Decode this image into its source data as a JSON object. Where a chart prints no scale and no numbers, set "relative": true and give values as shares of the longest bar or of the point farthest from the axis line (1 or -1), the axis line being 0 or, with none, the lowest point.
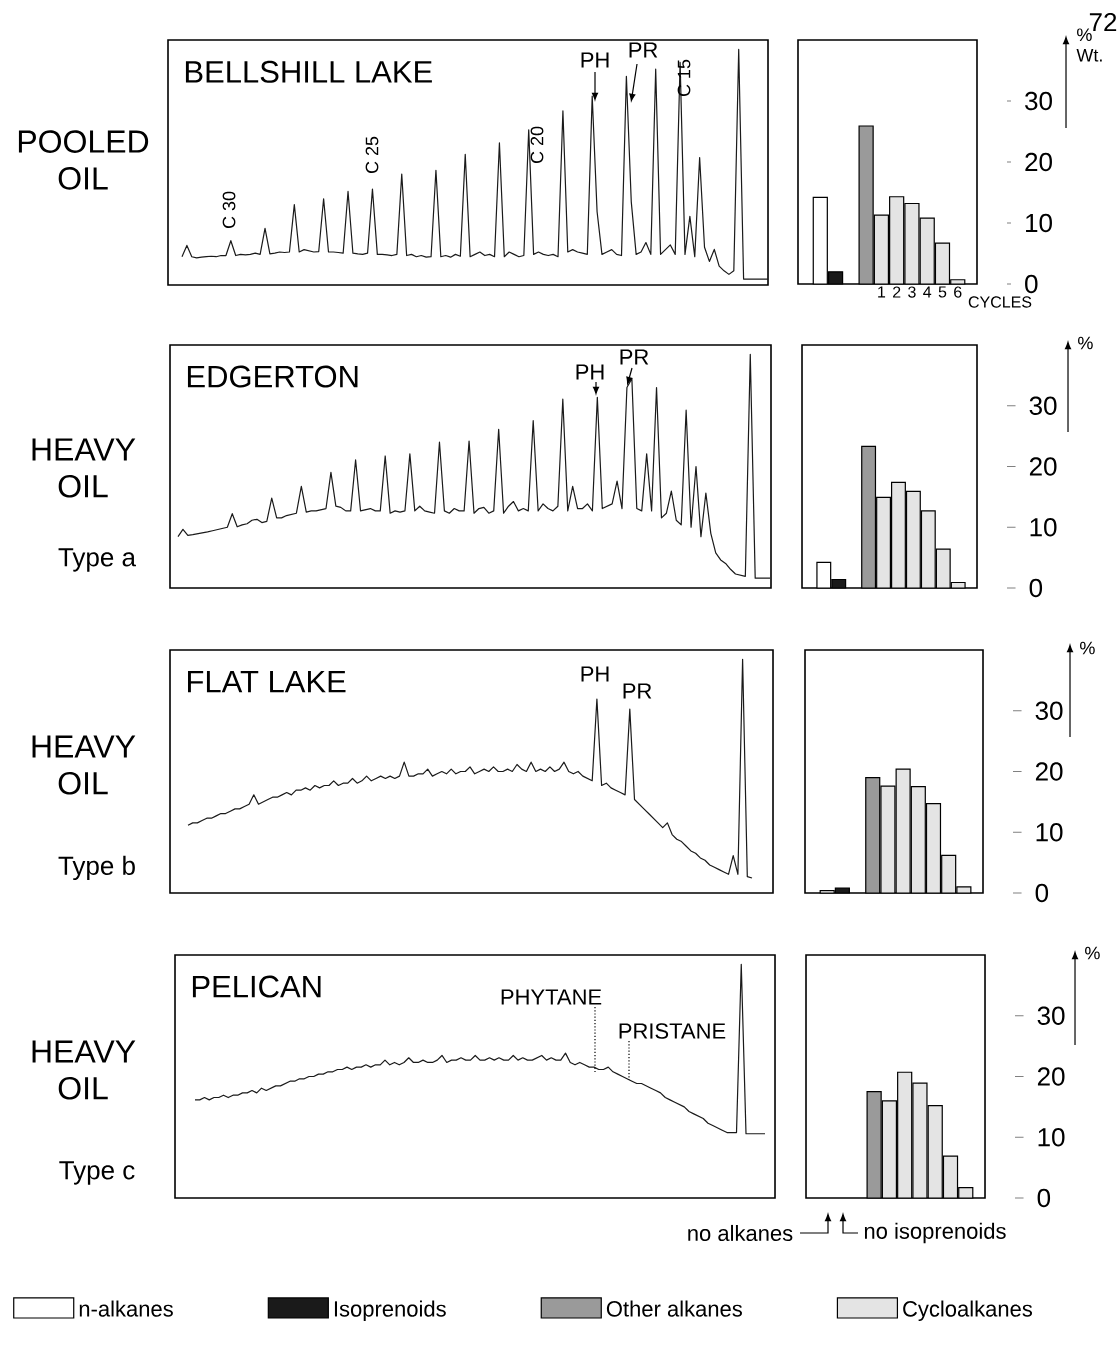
{
  "chart_data": [
    {
      "type": "line",
      "relative": true,
      "title": "BELLSHILL LAKE",
      "ylabel": "POOLED OIL",
      "annotations": [
        "C 30",
        "C 25",
        "C 20",
        "C 15",
        "PH",
        "PR"
      ],
      "categories": [
        null,
        null,
        null,
        null,
        null,
        null,
        null,
        null,
        null,
        null,
        null,
        null,
        null,
        null,
        null,
        null,
        null,
        null,
        null,
        null,
        null,
        null,
        null,
        null,
        null,
        null,
        null,
        null,
        null,
        null,
        null,
        null,
        null,
        null,
        null,
        null,
        null,
        null,
        null,
        null,
        null,
        null,
        null,
        null,
        null,
        null,
        null,
        null,
        null,
        null,
        null,
        null,
        null,
        null,
        null,
        null,
        null,
        null,
        null,
        null,
        null,
        null,
        null,
        null,
        null,
        null,
        null,
        null,
        null,
        null,
        null,
        null,
        null,
        null,
        null,
        null,
        null,
        null,
        null,
        null,
        null,
        null,
        null,
        null,
        null,
        null,
        null,
        null,
        null,
        null,
        null,
        null,
        null,
        null,
        null,
        null,
        null,
        null,
        null,
        null,
        null,
        null,
        null,
        null,
        null,
        null,
        null,
        null,
        null,
        null,
        null,
        null,
        null,
        null,
        null,
        null,
        null,
        null,
        null,
        null,
        null
      ],
      "series": [
        {
          "color": "#1a1a1a",
          "values": [
            0.12,
            0.168,
            0.12,
            0.115,
            0.118,
            0.12,
            0.122,
            0.12,
            0.125,
            0.125,
            0.188,
            0.125,
            0.13,
            0.128,
            0.13,
            0.135,
            0.13,
            0.24,
            0.132,
            0.135,
            0.14,
            0.138,
            0.14,
            0.341,
            0.14,
            0.15,
            0.145,
            0.14,
            0.142,
            0.366,
            0.14,
            0.14,
            0.138,
            0.135,
            0.397,
            0.135,
            0.132,
            0.13,
            0.135,
            0.407,
            0.13,
            0.13,
            0.128,
            0.125,
            0.13,
            0.471,
            0.125,
            0.13,
            0.12,
            0.125,
            0.118,
            0.12,
            0.487,
            0.12,
            0.125,
            0.118,
            0.13,
            0.122,
            0.555,
            0.12,
            0.13,
            0.14,
            0.125,
            0.13,
            0.12,
            0.603,
            0.12,
            0.14,
            0.13,
            0.12,
            0.125,
            0.659,
            0.13,
            0.14,
            0.13,
            0.125,
            0.13,
            0.12,
            0.739,
            0.14,
            0.15,
            0.14,
            0.135,
            0.13,
            0.802,
            0.311,
            0.13,
            0.14,
            0.15,
            0.13,
            0.125,
            0.886,
            0.353,
            0.13,
            0.14,
            0.18,
            0.13,
            0.916,
            0.13,
            0.15,
            0.17,
            0.13,
            0.945,
            0.13,
            0.291,
            0.12,
            0.541,
            0.16,
            0.1,
            0.151,
            0.08,
            0.06,
            0.045,
            0.06,
            1,
            0.025,
            0.025,
            0.025,
            0.025,
            0.025,
            0.025
          ]
        }
      ]
    },
    {
      "type": "bar",
      "ylabel": "% Wt.",
      "xlabel": "CYCLES",
      "ylim": [
        0,
        40
      ],
      "yticks": [
        0,
        10,
        20,
        30
      ],
      "legend": "bottom",
      "annotations": [
        "72"
      ],
      "categories": [
        null,
        null,
        null,
        null,
        "1",
        "2",
        "3",
        "4",
        "5",
        "6"
      ],
      "series": [
        {
          "name": "n-alkanes",
          "color": "#ffffff",
          "values": [
            14.2,
            null,
            null,
            null,
            null,
            null,
            null,
            null,
            null,
            null
          ]
        },
        {
          "name": "Isoprenoids",
          "color": "#1a1a1a",
          "values": [
            null,
            2.0,
            null,
            null,
            null,
            null,
            null,
            null,
            null,
            null
          ]
        },
        {
          "name": "Other alkanes",
          "color": "#9a9a9a",
          "values": [
            null,
            null,
            null,
            25.9,
            null,
            null,
            null,
            null,
            null,
            null
          ]
        },
        {
          "name": "Cycloalkanes",
          "color": "#e4e4e4",
          "values": [
            null,
            null,
            null,
            null,
            11.3,
            14.3,
            13.2,
            10.8,
            6.7,
            0.7
          ]
        }
      ]
    },
    {
      "type": "line",
      "relative": true,
      "title": "EDGERTON",
      "ylabel": "HEAVY OIL",
      "annotations": [
        "PH",
        "PR",
        "Type a"
      ],
      "categories": [
        null,
        null,
        null,
        null,
        null,
        null,
        null,
        null,
        null,
        null,
        null,
        null,
        null,
        null,
        null,
        null,
        null,
        null,
        null,
        null,
        null,
        null,
        null,
        null,
        null,
        null,
        null,
        null,
        null,
        null,
        null,
        null,
        null,
        null,
        null,
        null,
        null,
        null,
        null,
        null,
        null,
        null,
        null,
        null,
        null,
        null,
        null,
        null,
        null,
        null,
        null,
        null,
        null,
        null,
        null,
        null,
        null,
        null,
        null,
        null,
        null,
        null,
        null,
        null,
        null,
        null,
        null,
        null,
        null,
        null,
        null,
        null,
        null,
        null,
        null,
        null,
        null,
        null,
        null,
        null,
        null,
        null,
        null,
        null,
        null,
        null,
        null,
        null,
        null,
        null,
        null,
        null,
        null,
        null,
        null,
        null,
        null,
        null,
        null,
        null,
        null,
        null,
        null,
        null,
        null,
        null,
        null,
        null,
        null,
        null,
        null,
        null,
        null,
        null,
        null,
        null,
        null,
        null,
        null,
        null,
        null
      ],
      "series": [
        {
          "color": "#1a1a1a",
          "values": [
            0.22,
            0.251,
            0.225,
            0.228,
            0.232,
            0.236,
            0.24,
            0.245,
            0.25,
            0.255,
            0.26,
            0.318,
            0.262,
            0.27,
            0.275,
            0.29,
            0.294,
            0.28,
            0.285,
            0.385,
            0.3,
            0.3,
            0.31,
            0.315,
            0.32,
            0.435,
            0.325,
            0.33,
            0.33,
            0.335,
            0.34,
            0.495,
            0.35,
            0.345,
            0.33,
            0.33,
            0.548,
            0.33,
            0.335,
            0.34,
            0.33,
            0.33,
            0.565,
            0.32,
            0.33,
            0.325,
            0.33,
            0.574,
            0.33,
            0.35,
            0.33,
            0.325,
            0.32,
            0.624,
            0.33,
            0.32,
            0.34,
            0.33,
            0.33,
            0.629,
            0.32,
            0.34,
            0.345,
            0.32,
            0.33,
            0.679,
            0.32,
            0.35,
            0.37,
            0.33,
            0.34,
            0.33,
            0.716,
            0.33,
            0.36,
            0.34,
            0.33,
            0.35,
            0.808,
            0.33,
            0.435,
            0.34,
            0.34,
            0.36,
            0.33,
            0.816,
            0.34,
            0.35,
            0.36,
            0.457,
            0.34,
            0.858,
            0.896,
            0.34,
            0.33,
            0.574,
            0.33,
            0.858,
            0.3,
            0.32,
            0.415,
            0.29,
            0.27,
            0.761,
            0.26,
            0.52,
            0.22,
            0.406,
            0.234,
            0.15,
            0.12,
            0.105,
            0.08,
            0.06,
            0.055,
            0.05,
            1,
            0.042,
            0.042,
            0.042,
            0.042
          ]
        }
      ]
    },
    {
      "type": "bar",
      "ylabel": "%",
      "ylim": [
        0,
        40
      ],
      "yticks": [
        0,
        10,
        20,
        30
      ],
      "tick_labels": "y",
      "categories": [
        null,
        null,
        null,
        null,
        "1",
        "2",
        "3",
        "4",
        "5",
        "6"
      ],
      "series": [
        {
          "color": "#ffffff",
          "values": [
            4.2,
            null,
            null,
            null,
            null,
            null,
            null,
            null,
            null,
            null
          ]
        },
        {
          "color": "#1a1a1a",
          "values": [
            null,
            1.4,
            null,
            null,
            null,
            null,
            null,
            null,
            null,
            null
          ]
        },
        {
          "color": "#9a9a9a",
          "values": [
            null,
            null,
            null,
            23.3,
            null,
            null,
            null,
            null,
            null,
            null
          ]
        },
        {
          "color": "#e4e4e4",
          "values": [
            null,
            null,
            null,
            null,
            14.9,
            17.4,
            15.9,
            12.7,
            6.4,
            0.9
          ]
        }
      ]
    },
    {
      "type": "line",
      "relative": true,
      "title": "FLAT LAKE",
      "ylabel": "HEAVY OIL",
      "annotations": [
        "PH",
        "PR",
        "Type b"
      ],
      "categories": [
        null,
        null,
        null,
        null,
        null,
        null,
        null,
        null,
        null,
        null,
        null,
        null,
        null,
        null,
        null,
        null,
        null,
        null,
        null,
        null,
        null,
        null,
        null,
        null,
        null,
        null,
        null,
        null,
        null,
        null,
        null,
        null,
        null,
        null,
        null,
        null,
        null,
        null,
        null,
        null,
        null,
        null,
        null,
        null,
        null,
        null,
        null,
        null,
        null,
        null,
        null,
        null,
        null,
        null,
        null,
        null,
        null,
        null,
        null,
        null,
        null,
        null,
        null,
        null,
        null,
        null,
        null,
        null,
        null,
        null,
        null,
        null,
        null,
        null,
        null,
        null,
        null,
        null,
        null,
        null,
        null,
        null,
        null,
        null,
        null,
        null,
        null,
        null,
        null,
        null,
        null,
        null,
        null,
        null,
        null,
        null,
        null,
        null,
        null,
        null,
        null,
        null,
        null,
        null,
        null,
        null,
        null,
        null,
        null,
        null,
        null,
        null,
        null,
        null,
        null,
        null,
        null,
        null,
        null,
        null,
        null
      ],
      "series": [
        {
          "color": "#1a1a1a",
          "values": [
            0.29,
            0.3,
            0.3,
            0.31,
            0.32,
            0.32,
            0.33,
            0.34,
            0.34,
            0.35,
            0.36,
            0.36,
            0.37,
            0.38,
            0.42,
            0.38,
            0.39,
            0.4,
            0.41,
            0.41,
            0.42,
            0.43,
            0.42,
            0.44,
            0.44,
            0.45,
            0.44,
            0.46,
            0.45,
            0.46,
            0.46,
            0.48,
            0.46,
            0.47,
            0.47,
            0.49,
            0.47,
            0.48,
            0.5,
            0.48,
            0.49,
            0.5,
            0.49,
            0.5,
            0.49,
            0.5,
            0.56,
            0.5,
            0.5,
            0.51,
            0.51,
            0.53,
            0.5,
            0.51,
            0.52,
            0.51,
            0.53,
            0.51,
            0.52,
            0.52,
            0.54,
            0.51,
            0.52,
            0.53,
            0.52,
            0.54,
            0.52,
            0.52,
            0.53,
            0.52,
            0.55,
            0.53,
            0.52,
            0.56,
            0.52,
            0.53,
            0.52,
            0.54,
            0.52,
            0.53,
            0.56,
            0.52,
            0.51,
            0.52,
            0.5,
            0.49,
            0.48,
            0.83,
            0.46,
            0.47,
            0.45,
            0.44,
            0.43,
            0.42,
            0.787,
            0.4,
            0.38,
            0.36,
            0.34,
            0.32,
            0.3,
            0.28,
            0.3,
            0.25,
            0.23,
            0.22,
            0.2,
            0.18,
            0.17,
            0.15,
            0.14,
            0.12,
            0.11,
            0.1,
            0.09,
            0.08,
            0.16,
            0.08,
            1,
            0.07,
            0.064
          ]
        }
      ]
    },
    {
      "type": "bar",
      "ylabel": "%",
      "ylim": [
        0,
        40
      ],
      "yticks": [
        0,
        10,
        20,
        30
      ],
      "tick_labels": "y",
      "categories": [
        null,
        null,
        null,
        null,
        "1",
        "2",
        "3",
        "4",
        "5",
        "6"
      ],
      "series": [
        {
          "color": "#ffffff",
          "values": [
            0.4,
            null,
            null,
            null,
            null,
            null,
            null,
            null,
            null,
            null
          ]
        },
        {
          "color": "#1a1a1a",
          "values": [
            null,
            0.8,
            null,
            null,
            null,
            null,
            null,
            null,
            null,
            null
          ]
        },
        {
          "color": "#9a9a9a",
          "values": [
            null,
            null,
            null,
            19.0,
            null,
            null,
            null,
            null,
            null,
            null
          ]
        },
        {
          "color": "#e4e4e4",
          "values": [
            null,
            null,
            null,
            null,
            17.6,
            20.4,
            17.5,
            14.7,
            6.2,
            1.0
          ]
        }
      ]
    },
    {
      "type": "line",
      "relative": true,
      "title": "PELICAN",
      "ylabel": "HEAVY OIL",
      "annotations": [
        "PHYTANE",
        "PRISTANE",
        "Type c"
      ],
      "categories": [
        null,
        null,
        null,
        null,
        null,
        null,
        null,
        null,
        null,
        null,
        null,
        null,
        null,
        null,
        null,
        null,
        null,
        null,
        null,
        null,
        null,
        null,
        null,
        null,
        null,
        null,
        null,
        null,
        null,
        null,
        null,
        null,
        null,
        null,
        null,
        null,
        null,
        null,
        null,
        null,
        null,
        null,
        null,
        null,
        null,
        null,
        null,
        null,
        null,
        null,
        null,
        null,
        null,
        null,
        null,
        null,
        null,
        null,
        null,
        null,
        null,
        null,
        null,
        null,
        null,
        null,
        null,
        null,
        null,
        null,
        null,
        null,
        null,
        null,
        null,
        null,
        null,
        null,
        null,
        null,
        null,
        null,
        null,
        null,
        null,
        null,
        null,
        null,
        null,
        null,
        null,
        null,
        null,
        null,
        null,
        null,
        null,
        null,
        null,
        null,
        null,
        null,
        null,
        null,
        null,
        null,
        null,
        null,
        null,
        null,
        null,
        null,
        null,
        null,
        null,
        null,
        null,
        null,
        null,
        null,
        null
      ],
      "series": [
        {
          "color": "#1a1a1a",
          "values": [
            0.42,
            0.42,
            0.43,
            0.42,
            0.43,
            0.43,
            0.44,
            0.43,
            0.44,
            0.44,
            0.45,
            0.45,
            0.46,
            0.45,
            0.47,
            0.46,
            0.47,
            0.48,
            0.48,
            0.49,
            0.5,
            0.5,
            0.51,
            0.51,
            0.52,
            0.52,
            0.53,
            0.53,
            0.54,
            0.54,
            0.55,
            0.55,
            0.56,
            0.55,
            0.56,
            0.56,
            0.57,
            0.56,
            0.57,
            0.57,
            0.59,
            0.57,
            0.58,
            0.57,
            0.58,
            0.6,
            0.58,
            0.58,
            0.59,
            0.58,
            0.58,
            0.59,
            0.61,
            0.58,
            0.59,
            0.59,
            0.6,
            0.59,
            0.59,
            0.61,
            0.59,
            0.59,
            0.6,
            0.59,
            0.6,
            0.59,
            0.59,
            0.61,
            0.59,
            0.6,
            0.59,
            0.59,
            0.6,
            0.61,
            0.59,
            0.6,
            0.59,
            0.59,
            0.62,
            0.58,
            0.57,
            0.58,
            0.57,
            0.56,
            0.56,
            0.55,
            0.55,
            0.56,
            0.54,
            0.53,
            0.52,
            0.51,
            0.5,
            0.49,
            0.49,
            0.48,
            0.47,
            0.46,
            0.45,
            0.43,
            0.42,
            0.41,
            0.4,
            0.39,
            0.37,
            0.36,
            0.35,
            0.34,
            0.32,
            0.31,
            0.3,
            0.29,
            0.28,
            0.28,
            0.28,
            1,
            0.275,
            0.275,
            0.275,
            0.275,
            0.275
          ]
        }
      ]
    },
    {
      "type": "bar",
      "ylabel": "%",
      "ylim": [
        0,
        40
      ],
      "yticks": [
        0,
        10,
        20,
        30
      ],
      "tick_labels": "y",
      "annotations": [
        "no alkanes",
        "no isoprenoids"
      ],
      "categories": [
        null,
        null,
        null,
        null,
        "1",
        "2",
        "3",
        "4",
        "5",
        "6"
      ],
      "series": [
        {
          "color": "#9a9a9a",
          "values": [
            null,
            null,
            null,
            17.5,
            null,
            null,
            null,
            null,
            null,
            null
          ]
        },
        {
          "color": "#e4e4e4",
          "values": [
            null,
            null,
            null,
            null,
            16.0,
            20.7,
            18.9,
            15.2,
            6.9,
            1.7
          ]
        }
      ]
    }
  ]
}
